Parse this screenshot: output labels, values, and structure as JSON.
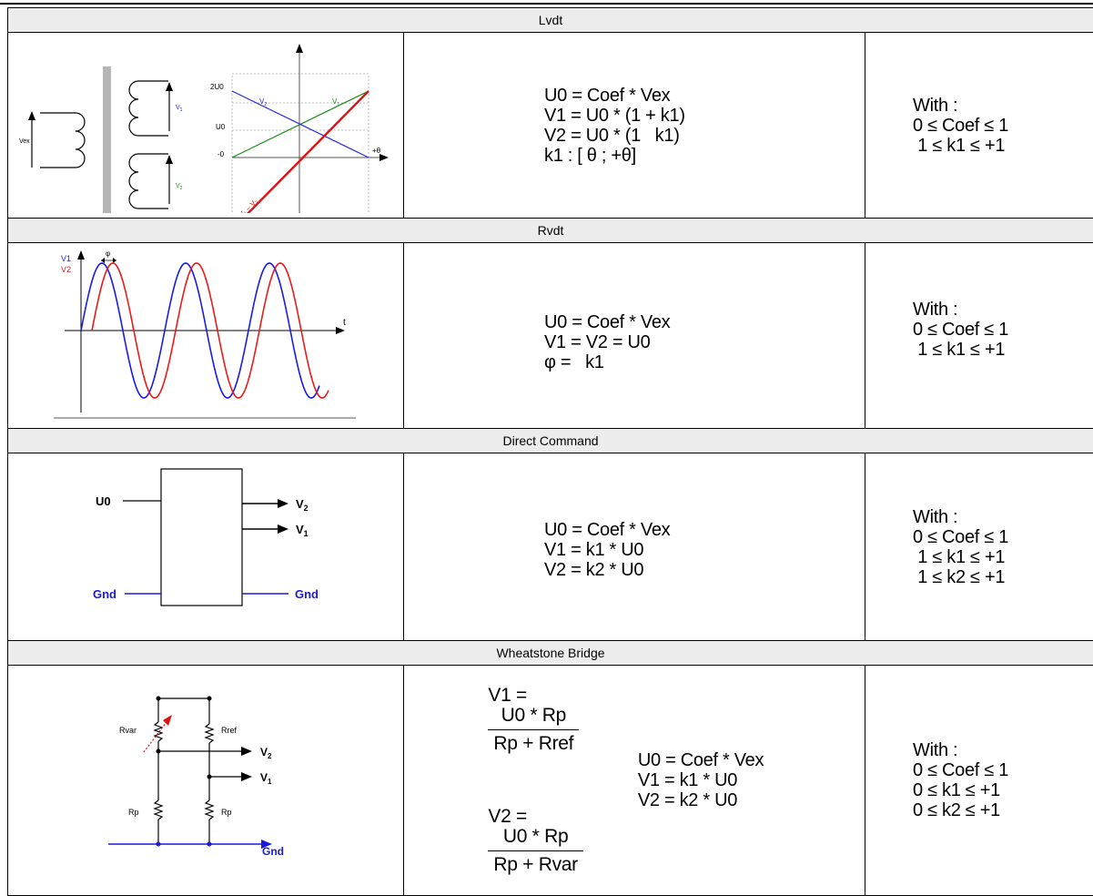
{
  "sections": {
    "lvdt": {
      "title": "Lvdt",
      "diagram": {
        "vex": "Vex",
        "v1": "V",
        "v1_sub": "1",
        "v2": "V",
        "v2_sub": "2"
      },
      "graph": {
        "y_labels": [
          "2U0",
          "U0",
          "-0"
        ],
        "x_label": "+θ",
        "v1": "V",
        "v1_sub": "1",
        "v2": "V",
        "v2_sub": "2",
        "diff": "V₁ – V₂",
        "colors": {
          "v1": "#1a8a1a",
          "v2": "#2a2ae0",
          "diff": "#e01010"
        }
      },
      "equations": [
        "U0 = Coef * Vex",
        "V1 = U0 * (1 + k1)",
        "V2 = U0 * (1   k1)",
        "k1 : [ θ ; +θ]"
      ],
      "constraints": [
        "With :",
        "0 ≤ Coef ≤ 1",
        " 1 ≤ k1 ≤ +1"
      ]
    },
    "rvdt": {
      "title": "Rvdt",
      "graph": {
        "v1": "V1",
        "v2": "V2",
        "phi": "φ",
        "t": "t",
        "colors": {
          "v1": "#1a1ae8",
          "v2": "#e81a1a"
        }
      },
      "equations": [
        "U0 = Coef * Vex",
        "V1 = V2 = U0",
        "φ =   k1"
      ],
      "constraints": [
        "With :",
        "0 ≤ Coef ≤ 1",
        " 1 ≤ k1 ≤ +1"
      ]
    },
    "direct": {
      "title": "Direct Command",
      "diagram": {
        "u0": "U0",
        "v2": "V",
        "v2_sub": "2",
        "v1": "V",
        "v1_sub": "1",
        "gnd_left": "Gnd",
        "gnd_right": "Gnd",
        "colors": {
          "gnd": "#1a1ad8"
        }
      },
      "equations": [
        "U0 = Coef * Vex",
        "V1 = k1 * U0",
        "V2 = k2 * U0"
      ],
      "constraints": [
        "With :",
        "0 ≤ Coef ≤ 1",
        " 1 ≤ k1 ≤ +1",
        " 1 ≤ k2 ≤ +1"
      ]
    },
    "wheatstone": {
      "title": "Wheatstone Bridge",
      "diagram": {
        "rvar": "Rvar",
        "rref": "Rref",
        "rp_left": "Rp",
        "rp_right": "Rp",
        "v2": "V",
        "v2_sub": "2",
        "v1": "V",
        "v1_sub": "1",
        "gnd": "Gnd",
        "colors": {
          "gnd": "#1a1ad8",
          "arrow": "#e01010"
        }
      },
      "fractions": [
        {
          "lhs": "V1 =",
          "num": "U0 * Rp",
          "den": "Rp + Rref"
        },
        {
          "lhs": "V2 =",
          "num": "U0 * Rp",
          "den": "Rp + Rvar"
        }
      ],
      "equations": [
        "U0 = Coef * Vex",
        "V1 = k1 * U0",
        "V2 = k2 * U0"
      ],
      "constraints": [
        "With :",
        "0 ≤ Coef ≤ 1",
        "0 ≤ k1 ≤ +1",
        "0 ≤ k2 ≤ +1"
      ]
    }
  }
}
